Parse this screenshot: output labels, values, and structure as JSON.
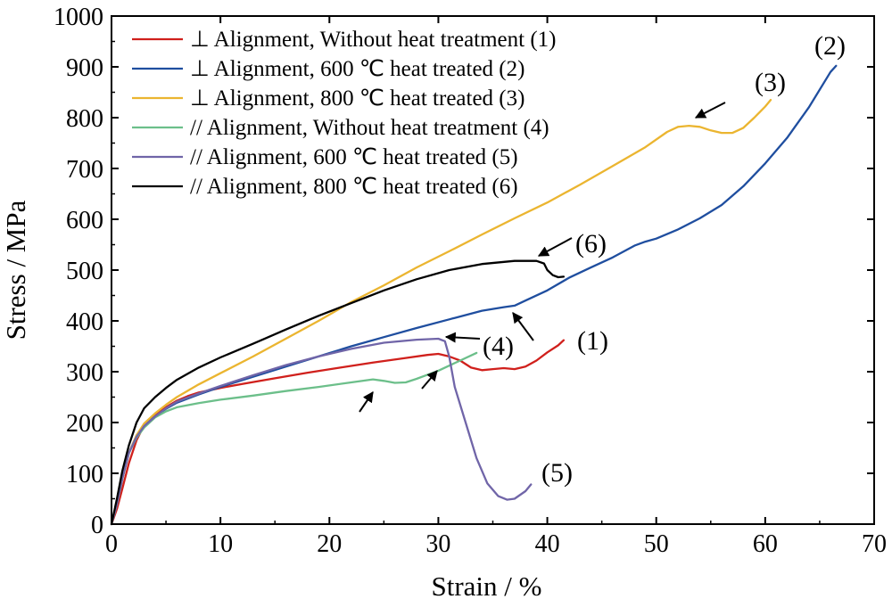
{
  "chart_data": {
    "type": "line",
    "xlabel": "Strain / %",
    "ylabel": "Stress / MPa",
    "xlim": [
      0,
      70
    ],
    "ylim": [
      0,
      1000
    ],
    "x_ticks": [
      "0",
      "10",
      "20",
      "30",
      "40",
      "50",
      "60",
      "70"
    ],
    "y_ticks": [
      "0",
      "100",
      "200",
      "300",
      "400",
      "500",
      "600",
      "700",
      "800",
      "900",
      "1000"
    ],
    "grid": false,
    "legend_position": "top-left",
    "series": [
      {
        "name": "⊥ Alignment, Without heat treatment (1)",
        "color": "#d0201c",
        "label": "(1)",
        "points": [
          [
            0,
            0
          ],
          [
            0.5,
            30
          ],
          [
            1,
            70
          ],
          [
            1.6,
            120
          ],
          [
            2.3,
            165
          ],
          [
            3,
            195
          ],
          [
            4,
            215
          ],
          [
            5,
            230
          ],
          [
            6,
            243
          ],
          [
            7,
            252
          ],
          [
            8,
            259
          ],
          [
            10,
            268
          ],
          [
            12,
            276
          ],
          [
            15,
            287
          ],
          [
            18,
            298
          ],
          [
            21,
            308
          ],
          [
            24,
            318
          ],
          [
            27,
            327
          ],
          [
            29,
            333
          ],
          [
            30,
            335
          ],
          [
            31,
            330
          ],
          [
            32,
            322
          ],
          [
            33,
            308
          ],
          [
            34,
            303
          ],
          [
            35,
            305
          ],
          [
            36,
            307
          ],
          [
            37,
            305
          ],
          [
            38,
            310
          ],
          [
            39,
            322
          ],
          [
            40,
            338
          ],
          [
            41,
            352
          ],
          [
            41.5,
            362
          ]
        ]
      },
      {
        "name": "⊥ Alignment, 600 ℃ heat treated (2)",
        "color": "#1f4e9f",
        "label": "(2)",
        "points": [
          [
            0,
            0
          ],
          [
            0.5,
            40
          ],
          [
            1,
            90
          ],
          [
            1.6,
            140
          ],
          [
            2.3,
            175
          ],
          [
            3,
            195
          ],
          [
            4,
            212
          ],
          [
            5,
            227
          ],
          [
            6,
            239
          ],
          [
            8,
            255
          ],
          [
            10,
            270
          ],
          [
            13,
            290
          ],
          [
            16,
            310
          ],
          [
            19,
            330
          ],
          [
            22,
            350
          ],
          [
            25,
            368
          ],
          [
            28,
            386
          ],
          [
            31,
            403
          ],
          [
            34,
            420
          ],
          [
            36,
            427
          ],
          [
            37,
            430
          ],
          [
            38,
            440
          ],
          [
            40,
            460
          ],
          [
            42,
            485
          ],
          [
            44,
            505
          ],
          [
            46,
            525
          ],
          [
            48,
            548
          ],
          [
            49,
            556
          ],
          [
            50,
            562
          ],
          [
            52,
            580
          ],
          [
            54,
            602
          ],
          [
            56,
            628
          ],
          [
            58,
            665
          ],
          [
            60,
            710
          ],
          [
            62,
            760
          ],
          [
            64,
            820
          ],
          [
            66,
            890
          ],
          [
            66.5,
            902
          ]
        ]
      },
      {
        "name": "⊥ Alignment, 800 ℃ heat treated (3)",
        "color": "#ebb530",
        "label": "(3)",
        "points": [
          [
            0,
            0
          ],
          [
            0.5,
            40
          ],
          [
            1,
            90
          ],
          [
            1.6,
            140
          ],
          [
            2.3,
            175
          ],
          [
            3,
            198
          ],
          [
            4,
            218
          ],
          [
            5,
            235
          ],
          [
            6,
            250
          ],
          [
            8,
            275
          ],
          [
            10,
            297
          ],
          [
            13,
            330
          ],
          [
            16,
            365
          ],
          [
            19,
            400
          ],
          [
            22,
            437
          ],
          [
            25,
            470
          ],
          [
            28,
            505
          ],
          [
            31,
            537
          ],
          [
            34,
            570
          ],
          [
            37,
            602
          ],
          [
            40,
            633
          ],
          [
            43,
            668
          ],
          [
            46,
            705
          ],
          [
            49,
            742
          ],
          [
            51,
            772
          ],
          [
            52,
            782
          ],
          [
            53,
            784
          ],
          [
            54,
            782
          ],
          [
            55,
            775
          ],
          [
            56,
            770
          ],
          [
            57,
            770
          ],
          [
            58,
            780
          ],
          [
            59,
            800
          ],
          [
            60,
            822
          ],
          [
            60.5,
            835
          ]
        ]
      },
      {
        "name": "// Alignment, Without heat treatment (4)",
        "color": "#6cbf8a",
        "label": "(4)",
        "points": [
          [
            0,
            0
          ],
          [
            0.5,
            40
          ],
          [
            1,
            90
          ],
          [
            1.6,
            140
          ],
          [
            2.3,
            170
          ],
          [
            3,
            190
          ],
          [
            4,
            210
          ],
          [
            5,
            222
          ],
          [
            6,
            230
          ],
          [
            8,
            238
          ],
          [
            10,
            245
          ],
          [
            13,
            253
          ],
          [
            16,
            262
          ],
          [
            19,
            270
          ],
          [
            22,
            279
          ],
          [
            24,
            285
          ],
          [
            25,
            282
          ],
          [
            26,
            278
          ],
          [
            27,
            279
          ],
          [
            28,
            286
          ],
          [
            29,
            294
          ],
          [
            30,
            302
          ],
          [
            31,
            312
          ],
          [
            32,
            322
          ],
          [
            33.5,
            337
          ]
        ]
      },
      {
        "name": "// Alignment, 600 ℃ heat treated (5)",
        "color": "#7065a8",
        "label": "(5)",
        "points": [
          [
            0,
            0
          ],
          [
            0.5,
            40
          ],
          [
            1,
            90
          ],
          [
            1.6,
            140
          ],
          [
            2.3,
            172
          ],
          [
            3,
            193
          ],
          [
            4,
            212
          ],
          [
            5,
            228
          ],
          [
            6,
            241
          ],
          [
            8,
            257
          ],
          [
            10,
            272
          ],
          [
            13,
            293
          ],
          [
            16,
            313
          ],
          [
            19,
            330
          ],
          [
            22,
            345
          ],
          [
            25,
            357
          ],
          [
            28,
            363
          ],
          [
            30,
            365
          ],
          [
            30.6,
            360
          ],
          [
            31,
            330
          ],
          [
            31.5,
            270
          ],
          [
            32.5,
            200
          ],
          [
            33.5,
            130
          ],
          [
            34.5,
            80
          ],
          [
            35.5,
            55
          ],
          [
            36.3,
            48
          ],
          [
            37,
            50
          ],
          [
            38,
            65
          ],
          [
            38.5,
            78
          ]
        ]
      },
      {
        "name": "// Alignment, 800 ℃ heat treated (6)",
        "color": "#000000",
        "label": "(6)",
        "points": [
          [
            0,
            0
          ],
          [
            0.5,
            50
          ],
          [
            1,
            105
          ],
          [
            1.6,
            155
          ],
          [
            2.3,
            200
          ],
          [
            3,
            228
          ],
          [
            4,
            250
          ],
          [
            5,
            268
          ],
          [
            6,
            284
          ],
          [
            8,
            308
          ],
          [
            10,
            328
          ],
          [
            13,
            355
          ],
          [
            16,
            383
          ],
          [
            19,
            410
          ],
          [
            22,
            435
          ],
          [
            25,
            460
          ],
          [
            28,
            482
          ],
          [
            31,
            500
          ],
          [
            34,
            512
          ],
          [
            37,
            518
          ],
          [
            39,
            518
          ],
          [
            39.7,
            513
          ],
          [
            40,
            500
          ],
          [
            40.5,
            490
          ],
          [
            41,
            486
          ],
          [
            41.5,
            487
          ]
        ]
      }
    ],
    "annotations": [
      {
        "label": "(1)",
        "series": "(1)"
      },
      {
        "label": "(2)",
        "series": "(2)"
      },
      {
        "label": "(3)",
        "series": "(3)"
      },
      {
        "label": "(4)",
        "series": "(4)"
      },
      {
        "label": "(5)",
        "series": "(5)"
      },
      {
        "label": "(6)",
        "series": "(6)"
      }
    ]
  }
}
